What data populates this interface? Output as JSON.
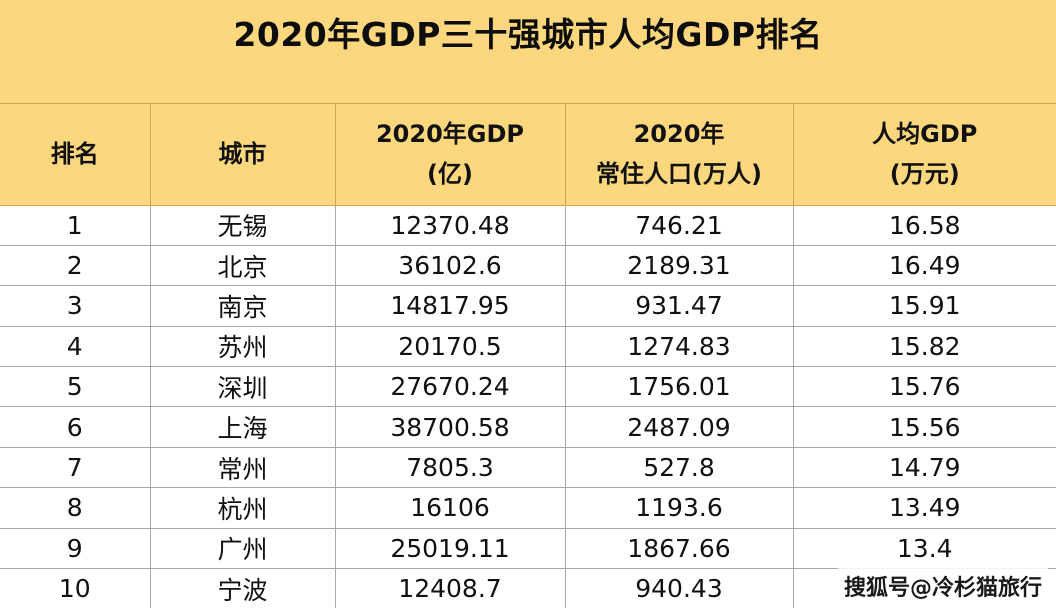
{
  "title": "2020年GDP三十强城市人均GDP排名",
  "headers": {
    "rank": "排名",
    "city": "城市",
    "gdp_line1": "2020年GDP",
    "gdp_line2": "(亿)",
    "pop_line1": "2020年",
    "pop_line2": "常住人口(万人)",
    "pcgdp_line1": "人均GDP",
    "pcgdp_line2": "(万元)"
  },
  "rows": [
    {
      "rank": "1",
      "city": "无锡",
      "gdp": "12370.48",
      "population": "746.21",
      "per_capita": "16.58"
    },
    {
      "rank": "2",
      "city": "北京",
      "gdp": "36102.6",
      "population": "2189.31",
      "per_capita": "16.49"
    },
    {
      "rank": "3",
      "city": "南京",
      "gdp": "14817.95",
      "population": "931.47",
      "per_capita": "15.91"
    },
    {
      "rank": "4",
      "city": "苏州",
      "gdp": "20170.5",
      "population": "1274.83",
      "per_capita": "15.82"
    },
    {
      "rank": "5",
      "city": "深圳",
      "gdp": "27670.24",
      "population": "1756.01",
      "per_capita": "15.76"
    },
    {
      "rank": "6",
      "city": "上海",
      "gdp": "38700.58",
      "population": "2487.09",
      "per_capita": "15.56"
    },
    {
      "rank": "7",
      "city": "常州",
      "gdp": "7805.3",
      "population": "527.8",
      "per_capita": "14.79"
    },
    {
      "rank": "8",
      "city": "杭州",
      "gdp": "16106",
      "population": "1193.6",
      "per_capita": "13.49"
    },
    {
      "rank": "9",
      "city": "广州",
      "gdp": "25019.11",
      "population": "1867.66",
      "per_capita": "13.4"
    },
    {
      "rank": "10",
      "city": "宁波",
      "gdp": "12408.7",
      "population": "940.43",
      "per_capita": ""
    }
  ],
  "watermark": "搜狐号@冷杉猫旅行"
}
